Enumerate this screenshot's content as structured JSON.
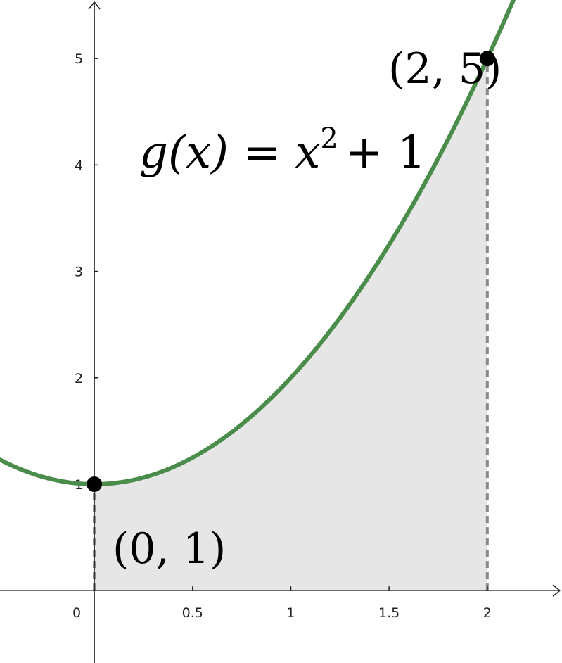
{
  "chart_data": {
    "type": "line",
    "title": "",
    "xlabel": "",
    "ylabel": "",
    "xlim": [
      -0.48,
      2.38
    ],
    "ylim": [
      -0.68,
      5.55
    ],
    "grid": false,
    "x_ticks": [
      {
        "value": 0,
        "label": "0"
      },
      {
        "value": 0.5,
        "label": "0.5"
      },
      {
        "value": 1,
        "label": "1"
      },
      {
        "value": 1.5,
        "label": "1.5"
      },
      {
        "value": 2,
        "label": "2"
      }
    ],
    "y_ticks": [
      {
        "value": 1,
        "label": "1"
      },
      {
        "value": 2,
        "label": "2"
      },
      {
        "value": 3,
        "label": "3"
      },
      {
        "value": 4,
        "label": "4"
      },
      {
        "value": 5,
        "label": "5"
      }
    ],
    "function": {
      "label_lhs": "g(x) = x",
      "label_exp": "2",
      "label_rhs": "+ 1",
      "color": "#4a8c4a",
      "x_start": -0.48,
      "x_end": 2.33
    },
    "shaded_region": {
      "x_from": 0,
      "x_to": 2,
      "color": "#e6e6e6"
    },
    "points": [
      {
        "x": 0,
        "y": 1,
        "label": "(0, 1)"
      },
      {
        "x": 2,
        "y": 5,
        "label": "(2, 5)"
      }
    ],
    "dashed_line_color": "#8a8a8a",
    "point_color": "#000000"
  }
}
